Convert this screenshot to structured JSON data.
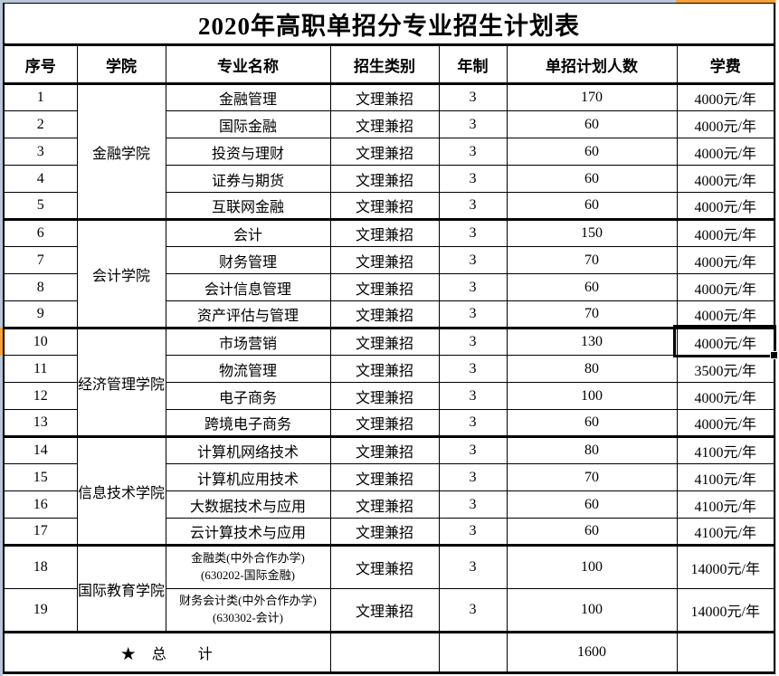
{
  "title": "2020年高职单招分专业招生计划表",
  "table": {
    "headers": [
      "序号",
      "学院",
      "专业名称",
      "招生类别",
      "年制",
      "单招计划人数",
      "学费"
    ],
    "groups": [
      {
        "college": "金融学院",
        "rows": [
          {
            "no": "1",
            "major": "金融管理",
            "category": "文理兼招",
            "years": "3",
            "plan": "170",
            "tuition": "4000元/年"
          },
          {
            "no": "2",
            "major": "国际金融",
            "category": "文理兼招",
            "years": "3",
            "plan": "60",
            "tuition": "4000元/年"
          },
          {
            "no": "3",
            "major": "投资与理财",
            "category": "文理兼招",
            "years": "3",
            "plan": "60",
            "tuition": "4000元/年"
          },
          {
            "no": "4",
            "major": "证券与期货",
            "category": "文理兼招",
            "years": "3",
            "plan": "60",
            "tuition": "4000元/年"
          },
          {
            "no": "5",
            "major": "互联网金融",
            "category": "文理兼招",
            "years": "3",
            "plan": "60",
            "tuition": "4000元/年"
          }
        ]
      },
      {
        "college": "会计学院",
        "rows": [
          {
            "no": "6",
            "major": "会计",
            "category": "文理兼招",
            "years": "3",
            "plan": "150",
            "tuition": "4000元/年"
          },
          {
            "no": "7",
            "major": "财务管理",
            "category": "文理兼招",
            "years": "3",
            "plan": "70",
            "tuition": "4000元/年"
          },
          {
            "no": "8",
            "major": "会计信息管理",
            "category": "文理兼招",
            "years": "3",
            "plan": "60",
            "tuition": "4000元/年"
          },
          {
            "no": "9",
            "major": "资产评估与管理",
            "category": "文理兼招",
            "years": "3",
            "plan": "70",
            "tuition": "4000元/年"
          }
        ]
      },
      {
        "college": "经济管理学院",
        "rows": [
          {
            "no": "10",
            "major": "市场营销",
            "category": "文理兼招",
            "years": "3",
            "plan": "130",
            "tuition": "4000元/年"
          },
          {
            "no": "11",
            "major": "物流管理",
            "category": "文理兼招",
            "years": "3",
            "plan": "80",
            "tuition": "3500元/年"
          },
          {
            "no": "12",
            "major": "电子商务",
            "category": "文理兼招",
            "years": "3",
            "plan": "100",
            "tuition": "4000元/年"
          },
          {
            "no": "13",
            "major": "跨境电子商务",
            "category": "文理兼招",
            "years": "3",
            "plan": "60",
            "tuition": "4000元/年"
          }
        ]
      },
      {
        "college": "信息技术学院",
        "rows": [
          {
            "no": "14",
            "major": "计算机网络技术",
            "category": "文理兼招",
            "years": "3",
            "plan": "80",
            "tuition": "4100元/年"
          },
          {
            "no": "15",
            "major": "计算机应用技术",
            "category": "文理兼招",
            "years": "3",
            "plan": "70",
            "tuition": "4100元/年"
          },
          {
            "no": "16",
            "major": "大数据技术与应用",
            "category": "文理兼招",
            "years": "3",
            "plan": "60",
            "tuition": "4100元/年"
          },
          {
            "no": "17",
            "major": "云计算技术与应用",
            "category": "文理兼招",
            "years": "3",
            "plan": "60",
            "tuition": "4100元/年"
          }
        ]
      },
      {
        "college": "国际教育学院",
        "rows": [
          {
            "no": "18",
            "major": "金融类(中外合作办学)(630202-国际金融)",
            "category": "文理兼招",
            "years": "3",
            "plan": "100",
            "tuition": "14000元/年"
          },
          {
            "no": "19",
            "major": "财务会计类(中外合作办学)(630302-会计)",
            "category": "文理兼招",
            "years": "3",
            "plan": "100",
            "tuition": "14000元/年"
          }
        ]
      }
    ],
    "total": {
      "label": "★　总　　计",
      "plan": "1600"
    }
  },
  "colors": {
    "selected_indicator_orange": "#f6a13b",
    "header_strip_blue": "#b9c7d9",
    "gridline_blue": "#ccd6e6",
    "border_black": "#000000"
  }
}
